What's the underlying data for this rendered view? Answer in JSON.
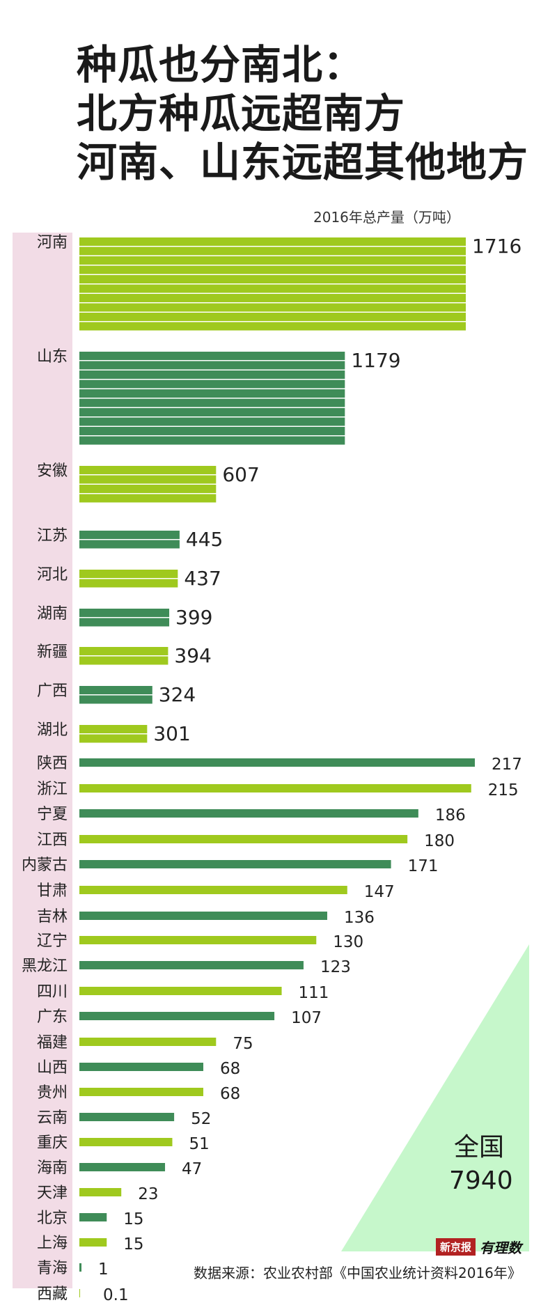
{
  "title_lines": [
    "种瓜也分南北：",
    "北方种瓜远超南方",
    "河南、山东远超其他地方"
  ],
  "unit_label": "2016年总产量（万吨）",
  "total": {
    "label": "全国",
    "value": "7940"
  },
  "brand": {
    "paper": "新京报",
    "sub": "有理数"
  },
  "source": "数据来源：农业农村部《中国农业统计资料2016年》",
  "colors": {
    "light_bar": "#9fc91e",
    "dark_bar": "#3f8c58",
    "stripe": "#f2dce6",
    "triangle": "#c6f7cb"
  },
  "chart_data": {
    "type": "bar",
    "orientation": "horizontal",
    "title": "种瓜也分南北：北方种瓜远超南方 河南、山东远超其他地方",
    "xlabel": "2016年总产量（万吨）",
    "categories": [
      "河南",
      "山东",
      "安徽",
      "江苏",
      "河北",
      "湖南",
      "新疆",
      "广西",
      "湖北",
      "陕西",
      "浙江",
      "宁夏",
      "江西",
      "内蒙古",
      "甘肃",
      "吉林",
      "辽宁",
      "黑龙江",
      "四川",
      "广东",
      "福建",
      "山西",
      "贵州",
      "云南",
      "重庆",
      "海南",
      "天津",
      "北京",
      "上海",
      "青海",
      "西藏"
    ],
    "values": [
      1716,
      1179,
      607,
      445,
      437,
      399,
      394,
      324,
      301,
      217,
      215,
      186,
      180,
      171,
      147,
      136,
      130,
      123,
      111,
      107,
      75,
      68,
      68,
      52,
      51,
      47,
      23,
      15,
      15,
      1,
      0.1
    ],
    "value_labels": [
      "1716",
      "1179",
      "607",
      "445",
      "437",
      "399",
      "394",
      "324",
      "301",
      "217",
      "215",
      "186",
      "180",
      "171",
      "147",
      "136",
      "130",
      "123",
      "111",
      "107",
      "75",
      "68",
      "68",
      "52",
      "51",
      "47",
      "23",
      "15",
      "15",
      "1",
      "0.1"
    ],
    "total": 7940
  }
}
